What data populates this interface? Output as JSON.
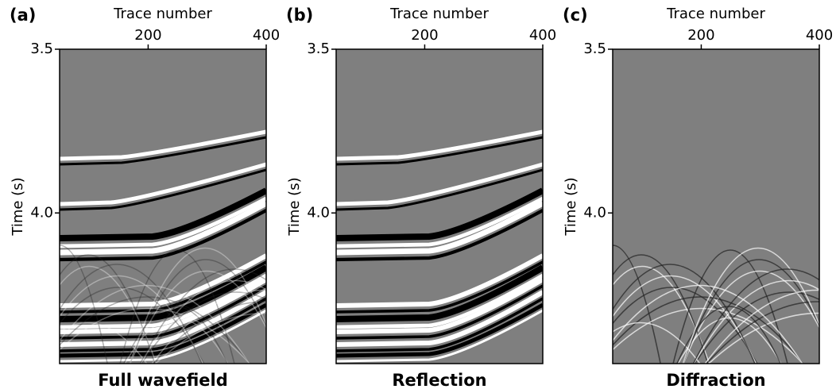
{
  "chart_data": [
    {
      "type": "image",
      "panel_label": "(a)",
      "title": "Full wavefield",
      "xlabel": "Trace number",
      "ylabel": "Time (s)",
      "xlim": [
        50,
        400
      ],
      "xticks": [
        200,
        400
      ],
      "ylim": [
        3.5,
        4.46
      ],
      "yticks": [
        3.5,
        {
          "value": 4,
          "label": "4.0"
        }
      ]
    },
    {
      "type": "image",
      "panel_label": "(b)",
      "title": "Reflection",
      "xlabel": "Trace number",
      "ylabel": "Time (s)",
      "xlim": [
        50,
        400
      ],
      "xticks": [
        200,
        400
      ],
      "ylim": [
        3.5,
        4.46
      ],
      "yticks": [
        3.5,
        {
          "value": 4,
          "label": "4.0"
        }
      ]
    },
    {
      "type": "image",
      "panel_label": "(c)",
      "title": "Diffraction",
      "xlabel": "Trace number",
      "ylabel": "Time (s)",
      "xlim": [
        50,
        400
      ],
      "xticks": [
        200,
        400
      ],
      "ylim": [
        3.5,
        4.46
      ],
      "yticks": [
        3.5,
        {
          "value": 4,
          "label": "4.0"
        }
      ]
    }
  ]
}
